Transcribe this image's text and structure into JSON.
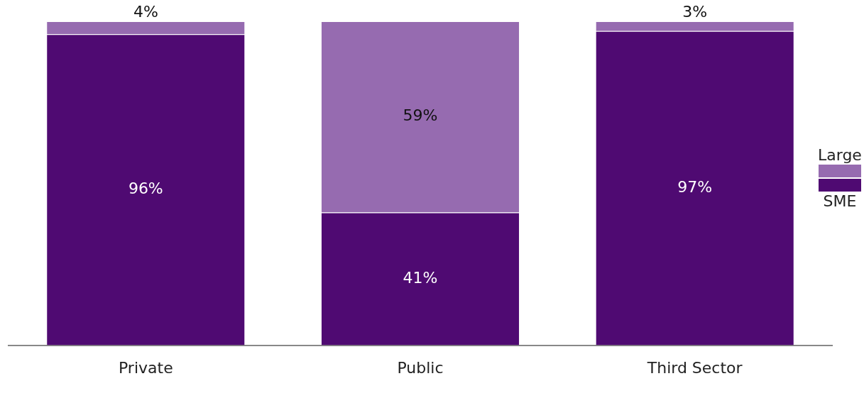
{
  "chart_data": {
    "type": "bar",
    "stacked": true,
    "categories": [
      "Private",
      "Public",
      "Third Sector"
    ],
    "ylim": [
      0,
      100
    ],
    "legend": "right",
    "tick_labels": "x",
    "grid": false,
    "series": [
      {
        "name": "SME",
        "color": "#4f0a72",
        "values": [
          96,
          41,
          97
        ],
        "value_labels": [
          "96%",
          "41%",
          "97%"
        ]
      },
      {
        "name": "Large",
        "color": "#966bb0",
        "values": [
          4,
          59,
          3
        ],
        "value_labels": [
          "4%",
          "59%",
          "3%"
        ]
      }
    ]
  }
}
